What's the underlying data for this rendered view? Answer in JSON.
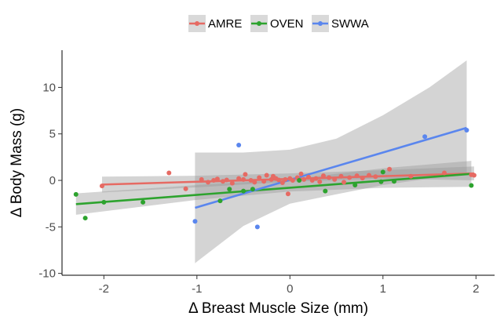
{
  "chart_data": {
    "type": "scatter",
    "xlabel": "Δ Breast Muscle Size (mm)",
    "ylabel": "Δ Body Mass (g)",
    "xlim": [
      -2.45,
      2.2
    ],
    "ylim": [
      -10.2,
      14.0
    ],
    "x_ticks": [
      -2,
      -1,
      0,
      1,
      2
    ],
    "y_ticks": [
      -10,
      -5,
      0,
      5,
      10
    ],
    "grid": false,
    "legend_position": "top",
    "series": [
      {
        "name": "AMRE",
        "color": "#E66A63",
        "points": [
          [
            -2.02,
            -0.6
          ],
          [
            -1.3,
            0.8
          ],
          [
            -1.12,
            -0.9
          ],
          [
            -0.95,
            0.1
          ],
          [
            -0.88,
            -0.2
          ],
          [
            -0.82,
            0.0
          ],
          [
            -0.78,
            0.15
          ],
          [
            -0.72,
            -0.1
          ],
          [
            -0.68,
            0.05
          ],
          [
            -0.62,
            -0.3
          ],
          [
            -0.55,
            0.2
          ],
          [
            -0.5,
            0.1
          ],
          [
            -0.48,
            0.65
          ],
          [
            -0.42,
            0.0
          ],
          [
            -0.38,
            -0.2
          ],
          [
            -0.33,
            0.3
          ],
          [
            -0.28,
            -0.1
          ],
          [
            -0.25,
            0.55
          ],
          [
            -0.2,
            0.1
          ],
          [
            -0.18,
            0.45
          ],
          [
            -0.15,
            0.2
          ],
          [
            -0.12,
            0.05
          ],
          [
            -0.08,
            -0.25
          ],
          [
            -0.05,
            0.1
          ],
          [
            -0.02,
            -1.45
          ],
          [
            0.0,
            0.2
          ],
          [
            0.03,
            0.0
          ],
          [
            0.08,
            0.3
          ],
          [
            0.12,
            0.7
          ],
          [
            0.15,
            0.1
          ],
          [
            0.2,
            0.35
          ],
          [
            0.24,
            0.0
          ],
          [
            0.28,
            0.2
          ],
          [
            0.32,
            -0.15
          ],
          [
            0.36,
            0.5
          ],
          [
            0.42,
            0.3
          ],
          [
            0.48,
            0.1
          ],
          [
            0.55,
            0.45
          ],
          [
            0.58,
            -0.2
          ],
          [
            0.64,
            0.3
          ],
          [
            0.72,
            0.5
          ],
          [
            0.78,
            0.25
          ],
          [
            0.85,
            0.55
          ],
          [
            0.92,
            0.4
          ],
          [
            1.07,
            1.2
          ],
          [
            1.3,
            0.45
          ],
          [
            1.66,
            0.8
          ],
          [
            1.95,
            0.6
          ],
          [
            1.98,
            0.55
          ]
        ],
        "trend": {
          "x": [
            -2.02,
            1.98
          ],
          "y": [
            -0.45,
            0.75
          ]
        },
        "band": {
          "x": [
            -2.02,
            -1.0,
            0.0,
            1.0,
            1.98
          ],
          "lower": [
            -1.3,
            -0.75,
            -0.15,
            0.2,
            0.0
          ],
          "upper": [
            0.4,
            0.5,
            0.75,
            1.1,
            1.5
          ]
        }
      },
      {
        "name": "OVEN",
        "color": "#2DA32E",
        "points": [
          [
            -2.3,
            -1.5
          ],
          [
            -2.2,
            -4.05
          ],
          [
            -2.0,
            -2.35
          ],
          [
            -1.58,
            -2.35
          ],
          [
            -0.75,
            -2.2
          ],
          [
            -0.65,
            -0.95
          ],
          [
            -0.5,
            -1.15
          ],
          [
            -0.4,
            -0.95
          ],
          [
            0.1,
            0.0
          ],
          [
            0.38,
            -1.15
          ],
          [
            0.7,
            -0.5
          ],
          [
            0.98,
            -0.15
          ],
          [
            1.0,
            0.9
          ],
          [
            1.12,
            -0.1
          ],
          [
            1.95,
            -0.55
          ]
        ],
        "trend": {
          "x": [
            -2.3,
            1.95
          ],
          "y": [
            -2.55,
            0.7
          ]
        },
        "band": {
          "x": [
            -2.3,
            -1.0,
            0.0,
            1.0,
            1.95
          ],
          "lower": [
            -3.7,
            -2.1,
            -1.2,
            -0.8,
            -0.7
          ],
          "upper": [
            -1.4,
            -0.5,
            0.1,
            1.3,
            2.1
          ]
        }
      },
      {
        "name": "SWWA",
        "color": "#5A86EE",
        "points": [
          [
            -1.02,
            -4.4
          ],
          [
            -0.55,
            3.8
          ],
          [
            -0.35,
            -5.0
          ],
          [
            1.45,
            4.7
          ],
          [
            1.9,
            5.4
          ]
        ],
        "trend": {
          "x": [
            -1.02,
            1.9
          ],
          "y": [
            -2.95,
            5.65
          ]
        },
        "band": {
          "x": [
            -1.02,
            -0.5,
            0.0,
            0.5,
            1.0,
            1.5,
            1.9
          ],
          "lower": [
            -8.9,
            -4.9,
            -2.5,
            -1.5,
            -0.5,
            0.2,
            0.6
          ],
          "upper": [
            3.0,
            3.0,
            3.3,
            4.5,
            7.0,
            10.0,
            12.9
          ]
        }
      }
    ]
  }
}
